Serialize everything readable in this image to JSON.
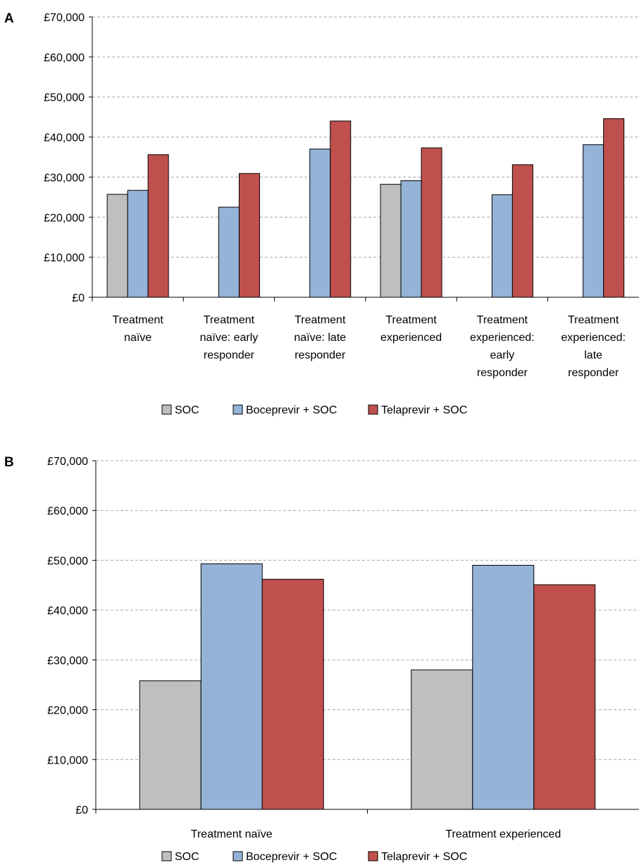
{
  "colors": {
    "SOC": "#bfbfbf",
    "Boceprevir + SOC": "#95b3d7",
    "Telaprevir + SOC": "#c0504d"
  },
  "chart_data": [
    {
      "panel": "A",
      "type": "bar",
      "ylim": [
        0,
        70000
      ],
      "ytick_values": [
        0,
        10000,
        20000,
        30000,
        40000,
        50000,
        60000,
        70000
      ],
      "ytick_labels": [
        "£0",
        "£10,000",
        "£20,000",
        "£30,000",
        "£40,000",
        "£50,000",
        "£60,000",
        "£70,000"
      ],
      "grid": true,
      "legend_position": "bottom",
      "categories": [
        [
          "Treatment",
          "naïve"
        ],
        [
          "Treatment",
          "naïve: early",
          "responder"
        ],
        [
          "Treatment",
          "naïve: late",
          "responder"
        ],
        [
          "Treatment",
          "experienced"
        ],
        [
          "Treatment",
          "experienced:",
          "early",
          "responder"
        ],
        [
          "Treatment",
          "experienced:",
          "late",
          "responder"
        ]
      ],
      "series": [
        {
          "name": "SOC",
          "values": [
            25700,
            null,
            null,
            28200,
            null,
            null
          ]
        },
        {
          "name": "Boceprevir + SOC",
          "values": [
            26700,
            22500,
            37000,
            29100,
            25600,
            38100
          ]
        },
        {
          "name": "Telaprevir + SOC",
          "values": [
            35600,
            30900,
            44000,
            37300,
            33100,
            44600
          ]
        }
      ]
    },
    {
      "panel": "B",
      "type": "bar",
      "ylim": [
        0,
        70000
      ],
      "ytick_values": [
        0,
        10000,
        20000,
        30000,
        40000,
        50000,
        60000,
        70000
      ],
      "ytick_labels": [
        "£0",
        "£10,000",
        "£20,000",
        "£30,000",
        "£40,000",
        "£50,000",
        "£60,000",
        "£70,000"
      ],
      "grid": true,
      "legend_position": "bottom",
      "categories": [
        [
          "Treatment naïve"
        ],
        [
          "Treatment experienced"
        ]
      ],
      "series": [
        {
          "name": "SOC",
          "values": [
            25800,
            28000
          ]
        },
        {
          "name": "Boceprevir + SOC",
          "values": [
            49300,
            49000
          ]
        },
        {
          "name": "Telaprevir + SOC",
          "values": [
            46200,
            45100
          ]
        }
      ]
    }
  ]
}
